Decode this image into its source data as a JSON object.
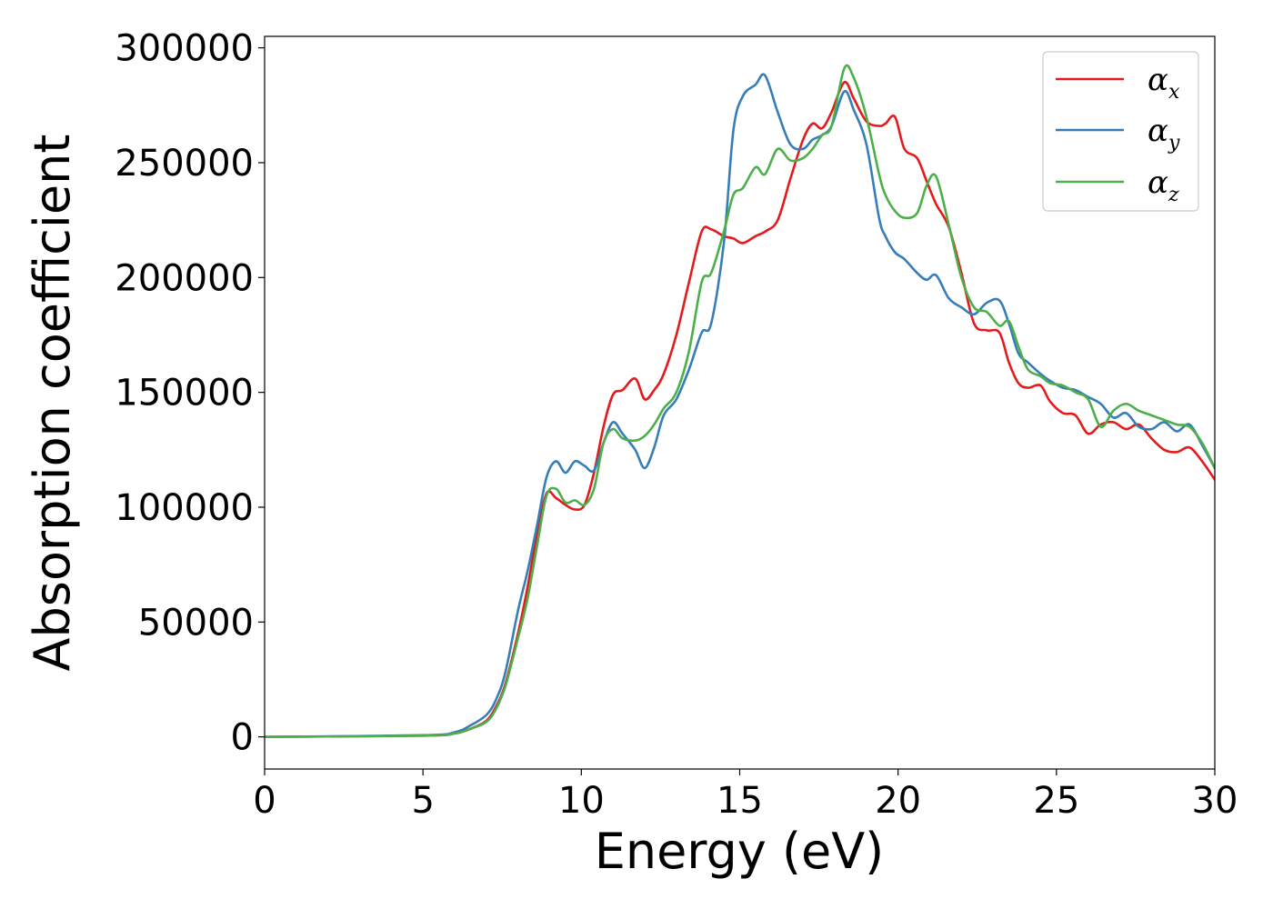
{
  "chart_data": {
    "type": "line",
    "xlabel": "Energy (eV)",
    "ylabel": "Absorption coefficient",
    "xlim": [
      0,
      30
    ],
    "ylim": [
      -14000,
      305000
    ],
    "x_ticks": [
      "0",
      "5",
      "10",
      "15",
      "20",
      "25",
      "30"
    ],
    "y_ticks": [
      "0",
      "50000",
      "100000",
      "150000",
      "200000",
      "250000",
      "300000"
    ],
    "grid": false,
    "legend_placement": "top-right",
    "series": [
      {
        "name": "α_x",
        "legend_symbol": "α",
        "legend_sub": "x",
        "color": "#e41a1c",
        "x": [
          0,
          5,
          6,
          6.5,
          7,
          7.3,
          7.6,
          8.0,
          8.3,
          8.6,
          8.9,
          9.2,
          9.5,
          9.8,
          10.1,
          10.4,
          10.7,
          11.0,
          11.3,
          11.7,
          12.0,
          12.3,
          12.6,
          13.0,
          13.4,
          13.8,
          14.1,
          14.5,
          14.8,
          15.1,
          15.5,
          15.8,
          16.2,
          16.6,
          17.0,
          17.3,
          17.6,
          17.9,
          18.3,
          18.6,
          19.0,
          19.4,
          19.6,
          19.9,
          20.2,
          20.6,
          20.9,
          21.2,
          21.6,
          22.0,
          22.4,
          22.8,
          23.2,
          23.5,
          23.8,
          24.1,
          24.5,
          24.8,
          25.2,
          25.6,
          26.0,
          26.4,
          26.8,
          27.2,
          27.6,
          28.0,
          28.4,
          28.8,
          29.2,
          29.6,
          30.0
        ],
        "y": [
          0,
          500,
          1500,
          3500,
          7000,
          13000,
          23000,
          45000,
          65000,
          88000,
          106000,
          104000,
          101000,
          99000,
          101000,
          115000,
          135000,
          149000,
          151000,
          156000,
          147000,
          151000,
          158000,
          175000,
          198000,
          220000,
          221000,
          218000,
          217000,
          215000,
          218000,
          220000,
          225000,
          243000,
          260000,
          267000,
          265000,
          272000,
          285000,
          278000,
          268000,
          266000,
          267000,
          270000,
          256000,
          252000,
          242000,
          232000,
          222000,
          202000,
          180000,
          177000,
          176000,
          163000,
          154000,
          152000,
          153000,
          146000,
          141000,
          140000,
          132000,
          136000,
          137000,
          134000,
          136000,
          130000,
          125000,
          124000,
          126000,
          120000,
          112000
        ]
      },
      {
        "name": "α_y",
        "legend_symbol": "α",
        "legend_sub": "y",
        "color": "#377eb8",
        "x": [
          0,
          5,
          6,
          6.5,
          7,
          7.3,
          7.6,
          8.0,
          8.3,
          8.6,
          8.9,
          9.2,
          9.5,
          9.8,
          10.1,
          10.4,
          10.7,
          11.0,
          11.3,
          11.7,
          12.0,
          12.3,
          12.6,
          13.0,
          13.4,
          13.8,
          14.1,
          14.5,
          14.8,
          15.1,
          15.5,
          15.8,
          16.2,
          16.6,
          17.0,
          17.3,
          17.6,
          17.9,
          18.3,
          18.6,
          19.0,
          19.4,
          19.6,
          19.9,
          20.2,
          20.6,
          20.9,
          21.2,
          21.6,
          22.0,
          22.4,
          22.8,
          23.2,
          23.5,
          23.8,
          24.1,
          24.5,
          24.8,
          25.2,
          25.6,
          26.0,
          26.4,
          26.8,
          27.2,
          27.6,
          28.0,
          28.4,
          28.8,
          29.2,
          29.6,
          30.0
        ],
        "y": [
          0,
          700,
          2000,
          5000,
          9500,
          16000,
          28000,
          55000,
          72000,
          92000,
          113000,
          120000,
          115000,
          120000,
          118000,
          116000,
          128000,
          137000,
          132000,
          125000,
          117000,
          126000,
          140000,
          147000,
          160000,
          176000,
          180000,
          215000,
          264000,
          279000,
          284000,
          288000,
          272000,
          258000,
          256000,
          260000,
          262000,
          266000,
          281000,
          273000,
          258000,
          226000,
          218000,
          211000,
          208000,
          202000,
          199000,
          201000,
          191000,
          187000,
          184000,
          189000,
          190000,
          180000,
          167000,
          163000,
          158000,
          155000,
          152000,
          151000,
          148000,
          145000,
          139000,
          141000,
          135000,
          134000,
          137000,
          133000,
          136000,
          127000,
          117000
        ]
      },
      {
        "name": "α_z",
        "legend_symbol": "α",
        "legend_sub": "z",
        "color": "#4daf4a",
        "x": [
          0,
          5,
          6,
          6.5,
          7,
          7.3,
          7.6,
          8.0,
          8.3,
          8.6,
          8.9,
          9.2,
          9.5,
          9.8,
          10.1,
          10.4,
          10.7,
          11.0,
          11.3,
          11.7,
          12.0,
          12.3,
          12.6,
          13.0,
          13.4,
          13.8,
          14.1,
          14.5,
          14.8,
          15.1,
          15.5,
          15.8,
          16.2,
          16.6,
          17.0,
          17.3,
          17.6,
          17.9,
          18.3,
          18.6,
          19.0,
          19.4,
          19.6,
          19.9,
          20.2,
          20.6,
          20.9,
          21.2,
          21.6,
          22.0,
          22.4,
          22.8,
          23.2,
          23.5,
          23.8,
          24.1,
          24.5,
          24.8,
          25.2,
          25.6,
          26.0,
          26.4,
          26.8,
          27.2,
          27.6,
          28.0,
          28.4,
          28.8,
          29.2,
          29.6,
          30.0
        ],
        "y": [
          0,
          500,
          1500,
          3500,
          6500,
          12000,
          22000,
          43000,
          60000,
          83000,
          105000,
          108000,
          102000,
          103000,
          101000,
          108000,
          128000,
          134000,
          130000,
          129000,
          131000,
          136000,
          143000,
          150000,
          168000,
          198000,
          202000,
          220000,
          236000,
          239000,
          248000,
          245000,
          256000,
          251000,
          252000,
          256000,
          262000,
          266000,
          291000,
          287000,
          270000,
          245000,
          236000,
          229000,
          226000,
          228000,
          240000,
          244000,
          223000,
          200000,
          187000,
          185000,
          179000,
          181000,
          170000,
          160000,
          157000,
          154000,
          153000,
          150000,
          147000,
          135000,
          142000,
          145000,
          142000,
          140000,
          138000,
          136000,
          135000,
          128000,
          117000
        ]
      }
    ]
  }
}
